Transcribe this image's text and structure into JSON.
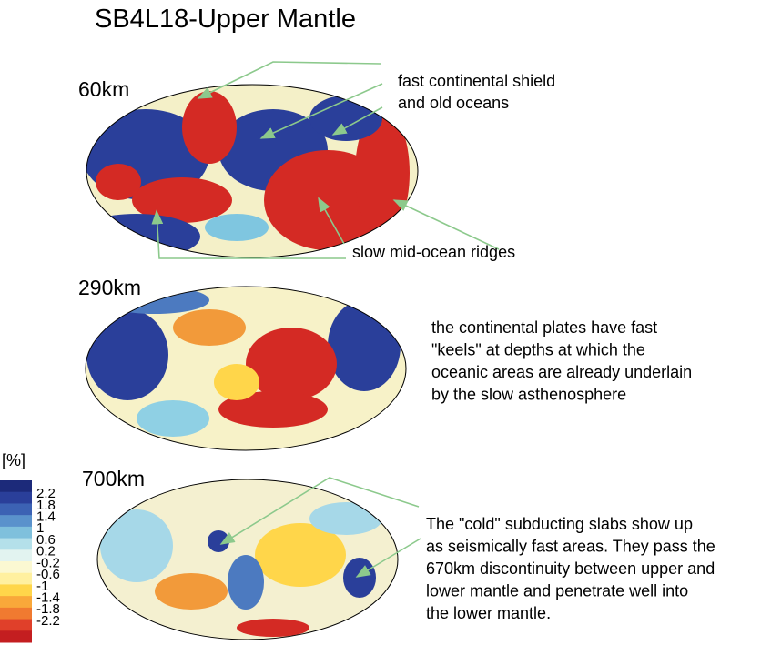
{
  "title": "SB4L18-Upper Mantle",
  "panels": [
    {
      "depth": "60km"
    },
    {
      "depth": "290km"
    },
    {
      "depth": "700km"
    }
  ],
  "annotations": {
    "shield": [
      "fast continental shield",
      "and old oceans"
    ],
    "ridges": [
      "slow mid-ocean ridges"
    ],
    "keels": [
      "the continental plates have fast",
      "\"keels\" at depths at which the",
      "oceanic areas are already underlain",
      "by the slow asthenosphere"
    ],
    "slabs": [
      "The \"cold\" subducting slabs show up",
      "as seismically fast areas. They pass the",
      "670km discontinuity between upper and",
      "lower mantle and penetrate well into",
      "the lower mantle."
    ]
  },
  "colorbar": {
    "unit": "[%]",
    "labels": [
      "2.2",
      "1.8",
      "1.4",
      "1",
      "0.6",
      "0.2",
      "-0.2",
      "-0.6",
      "-1",
      "-1.4",
      "-1.8",
      "-2.2"
    ]
  }
}
